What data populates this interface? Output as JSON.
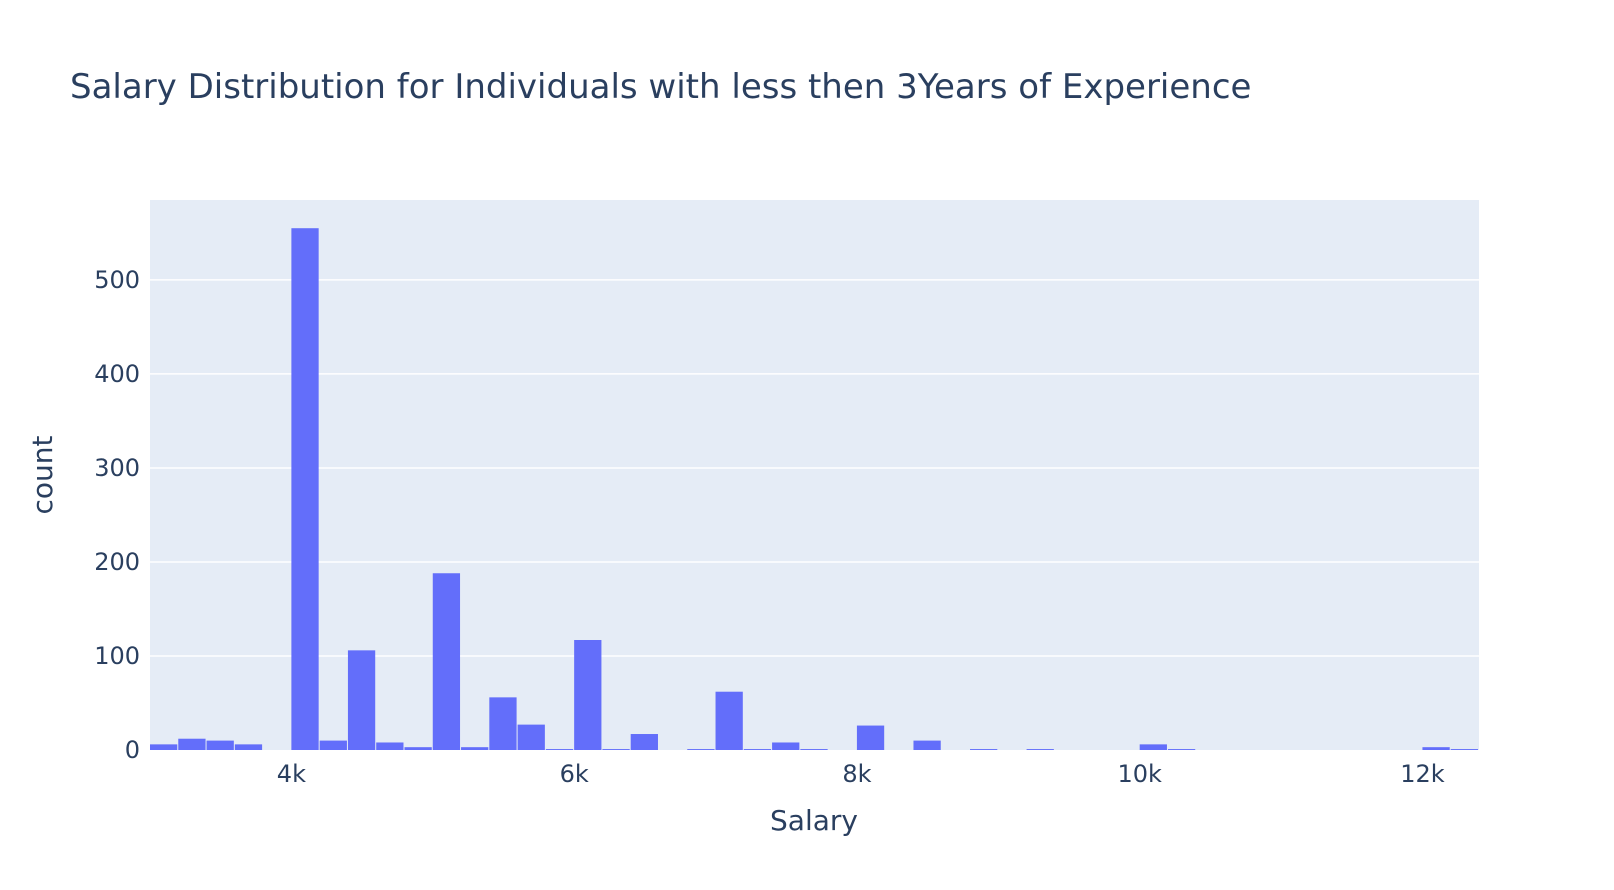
{
  "chart_data": {
    "type": "bar",
    "title": "Salary Distribution for Individuals with less then 3Years of Experience",
    "xlabel": "Salary",
    "ylabel": "count",
    "xlim": [
      3000,
      12400
    ],
    "ylim": [
      0,
      585
    ],
    "bin_width": 200,
    "x_ticks": [
      {
        "value": 4000,
        "label": "4k"
      },
      {
        "value": 6000,
        "label": "6k"
      },
      {
        "value": 8000,
        "label": "8k"
      },
      {
        "value": 10000,
        "label": "10k"
      },
      {
        "value": 12000,
        "label": "12k"
      }
    ],
    "y_ticks": [
      {
        "value": 0,
        "label": "0"
      },
      {
        "value": 100,
        "label": "100"
      },
      {
        "value": 200,
        "label": "200"
      },
      {
        "value": 300,
        "label": "300"
      },
      {
        "value": 400,
        "label": "400"
      },
      {
        "value": 500,
        "label": "500"
      }
    ],
    "bins": [
      {
        "x0": 3000,
        "x1": 3200,
        "count": 6
      },
      {
        "x0": 3200,
        "x1": 3400,
        "count": 12
      },
      {
        "x0": 3400,
        "x1": 3600,
        "count": 10
      },
      {
        "x0": 3600,
        "x1": 3800,
        "count": 6
      },
      {
        "x0": 4000,
        "x1": 4200,
        "count": 555
      },
      {
        "x0": 4200,
        "x1": 4400,
        "count": 10
      },
      {
        "x0": 4400,
        "x1": 4600,
        "count": 106
      },
      {
        "x0": 4600,
        "x1": 4800,
        "count": 8
      },
      {
        "x0": 4800,
        "x1": 5000,
        "count": 3
      },
      {
        "x0": 5000,
        "x1": 5200,
        "count": 188
      },
      {
        "x0": 5200,
        "x1": 5400,
        "count": 3
      },
      {
        "x0": 5400,
        "x1": 5600,
        "count": 56
      },
      {
        "x0": 5600,
        "x1": 5800,
        "count": 27
      },
      {
        "x0": 5800,
        "x1": 6000,
        "count": 1
      },
      {
        "x0": 6000,
        "x1": 6200,
        "count": 117
      },
      {
        "x0": 6200,
        "x1": 6400,
        "count": 1
      },
      {
        "x0": 6400,
        "x1": 6600,
        "count": 17
      },
      {
        "x0": 6800,
        "x1": 7000,
        "count": 1
      },
      {
        "x0": 7000,
        "x1": 7200,
        "count": 62
      },
      {
        "x0": 7200,
        "x1": 7400,
        "count": 1
      },
      {
        "x0": 7400,
        "x1": 7600,
        "count": 8
      },
      {
        "x0": 7600,
        "x1": 7800,
        "count": 1
      },
      {
        "x0": 8000,
        "x1": 8200,
        "count": 26
      },
      {
        "x0": 8400,
        "x1": 8600,
        "count": 10
      },
      {
        "x0": 8800,
        "x1": 9000,
        "count": 1
      },
      {
        "x0": 9200,
        "x1": 9400,
        "count": 1
      },
      {
        "x0": 10000,
        "x1": 10200,
        "count": 6
      },
      {
        "x0": 10200,
        "x1": 10400,
        "count": 1
      },
      {
        "x0": 12000,
        "x1": 12200,
        "count": 3
      },
      {
        "x0": 12200,
        "x1": 12400,
        "count": 1
      }
    ],
    "grid": true,
    "colors": {
      "bar": "#636efa",
      "plot_bg": "#e5ecf6",
      "grid": "#ffffff",
      "text": "#2a3f5f"
    }
  }
}
